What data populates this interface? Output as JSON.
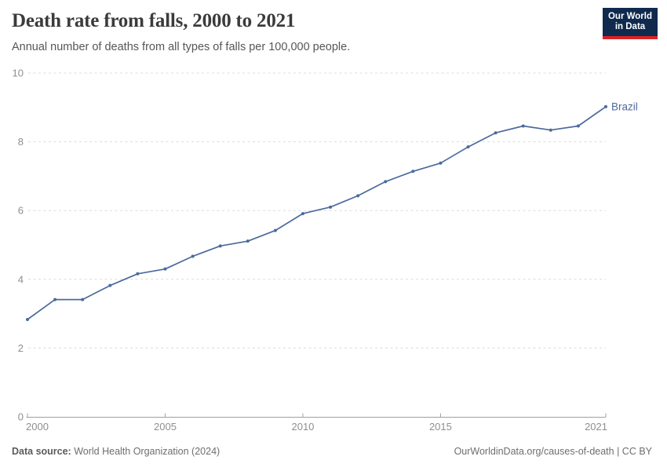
{
  "header": {
    "title": "Death rate from falls, 2000 to 2021",
    "subtitle": "Annual number of deaths from all types of falls per 100,000 people."
  },
  "logo": {
    "line1": "Our World",
    "line2": "in Data",
    "bg_color": "#102a4e",
    "stripe_color": "#dc2127"
  },
  "footer": {
    "source_label": "Data source:",
    "source_value": " World Health Organization (2024)",
    "link": "OurWorldinData.org/causes-of-death | CC BY"
  },
  "chart_data": {
    "type": "line",
    "title": "Death rate from falls, 2000 to 2021",
    "subtitle": "Annual number of deaths from all types of falls per 100,000 people.",
    "x": [
      2000,
      2001,
      2002,
      2003,
      2004,
      2005,
      2006,
      2007,
      2008,
      2009,
      2010,
      2011,
      2012,
      2013,
      2014,
      2015,
      2016,
      2017,
      2018,
      2019,
      2020,
      2021
    ],
    "series": [
      {
        "name": "Brazil",
        "color": "#4c6a9c",
        "values": [
          2.83,
          3.41,
          3.41,
          3.82,
          4.16,
          4.3,
          4.67,
          4.97,
          5.11,
          5.42,
          5.91,
          6.1,
          6.43,
          6.84,
          7.14,
          7.38,
          7.85,
          8.26,
          8.46,
          8.34,
          8.46,
          9.02
        ]
      }
    ],
    "xlabel": "",
    "ylabel": "",
    "xlim": [
      2000,
      2021
    ],
    "ylim": [
      0,
      10
    ],
    "xticks": [
      2000,
      2005,
      2010,
      2015,
      2021
    ],
    "yticks": [
      0,
      2,
      4,
      6,
      8,
      10
    ],
    "grid": "horizontal-dashed",
    "legend_position": "end-of-line-label",
    "entity_label": "Brazil"
  }
}
